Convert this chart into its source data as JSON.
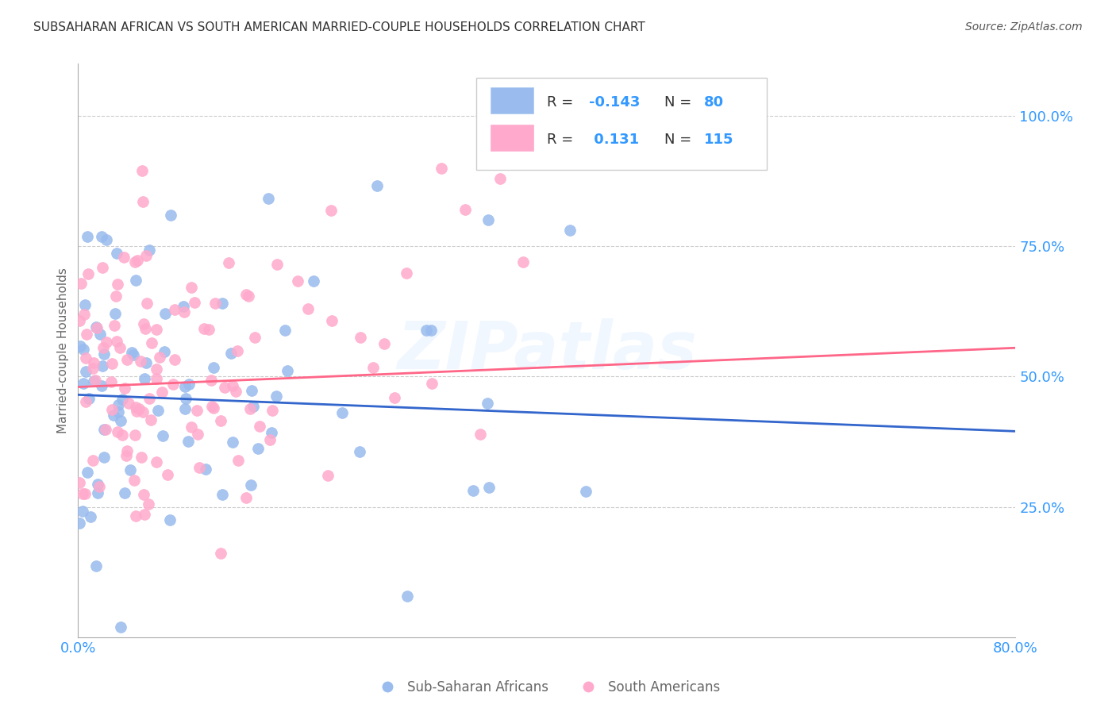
{
  "title": "SUBSAHARAN AFRICAN VS SOUTH AMERICAN MARRIED-COUPLE HOUSEHOLDS CORRELATION CHART",
  "source": "Source: ZipAtlas.com",
  "ylabel": "Married-couple Households",
  "ytick_labels": [
    "100.0%",
    "75.0%",
    "50.0%",
    "25.0%"
  ],
  "ytick_values": [
    1.0,
    0.75,
    0.5,
    0.25
  ],
  "xlim": [
    0.0,
    0.8
  ],
  "ylim": [
    0.0,
    1.1
  ],
  "blue_R": -0.143,
  "blue_N": 80,
  "pink_R": 0.131,
  "pink_N": 115,
  "blue_color": "#99BBEE",
  "pink_color": "#FFAACC",
  "blue_line_color": "#3366CC",
  "pink_line_color": "#FF6688",
  "watermark": "ZIPatlas",
  "background_color": "#ffffff",
  "grid_color": "#cccccc",
  "title_color": "#333333",
  "axis_label_color": "#3399FF",
  "blue_seed": 42,
  "pink_seed": 7,
  "bottom_legend_label_blue": "Sub-Saharan Africans",
  "bottom_legend_label_pink": "South Americans"
}
